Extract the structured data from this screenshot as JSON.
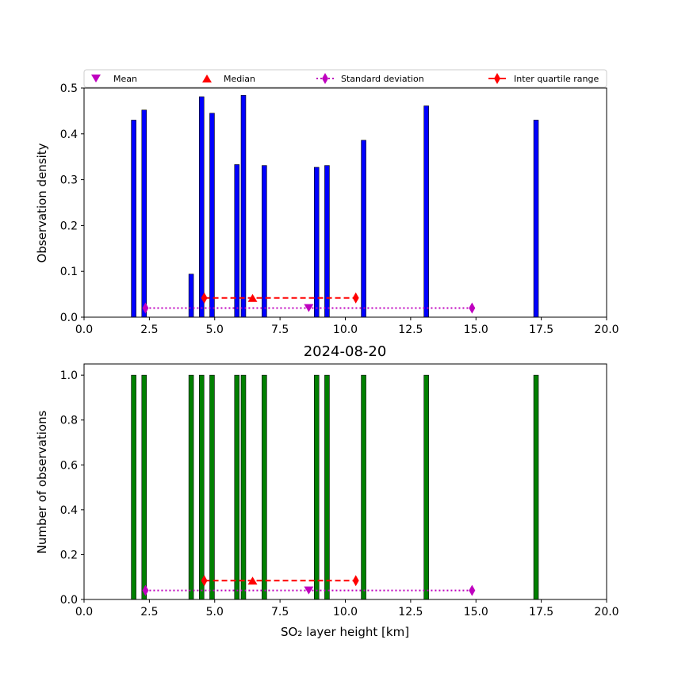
{
  "chart_data": [
    {
      "type": "bar",
      "ylabel": "Observation density",
      "xlabel": "",
      "title": "",
      "xlim": [
        0,
        20
      ],
      "ylim": [
        0,
        0.5
      ],
      "bar_width_km": 0.18,
      "bar_color": "#0000ff",
      "bars": [
        {
          "x": 1.9,
          "value": 0.43
        },
        {
          "x": 2.3,
          "value": 0.452
        },
        {
          "x": 4.1,
          "value": 0.094
        },
        {
          "x": 4.5,
          "value": 0.481
        },
        {
          "x": 4.9,
          "value": 0.445
        },
        {
          "x": 5.85,
          "value": 0.333
        },
        {
          "x": 6.1,
          "value": 0.484
        },
        {
          "x": 6.9,
          "value": 0.331
        },
        {
          "x": 8.9,
          "value": 0.327
        },
        {
          "x": 9.3,
          "value": 0.331
        },
        {
          "x": 10.7,
          "value": 0.386
        },
        {
          "x": 13.1,
          "value": 0.461
        },
        {
          "x": 17.3,
          "value": 0.43
        }
      ],
      "stats": {
        "std_line": {
          "x": [
            2.35,
            14.85
          ],
          "y": 0.02
        },
        "mean": {
          "x": 8.6,
          "y": 0.02
        },
        "iqr_line": {
          "x": [
            4.6,
            10.4
          ],
          "y": 0.042
        },
        "median": {
          "x": 6.45,
          "y": 0.042
        }
      },
      "xticks": [
        "0.0",
        "2.5",
        "5.0",
        "7.5",
        "10.0",
        "12.5",
        "15.0",
        "17.5",
        "20.0"
      ],
      "yticks": [
        "0.0",
        "0.1",
        "0.2",
        "0.3",
        "0.4",
        "0.5"
      ]
    },
    {
      "type": "bar",
      "title": "2024-08-20",
      "ylabel": "Number of observations",
      "xlabel": "SO₂ layer height [km]",
      "xlim": [
        0,
        20
      ],
      "ylim": [
        0,
        1.05
      ],
      "bar_width_km": 0.18,
      "bar_color": "#008000",
      "bars": [
        {
          "x": 1.9,
          "value": 1
        },
        {
          "x": 2.3,
          "value": 1
        },
        {
          "x": 4.1,
          "value": 1
        },
        {
          "x": 4.5,
          "value": 1
        },
        {
          "x": 4.9,
          "value": 1
        },
        {
          "x": 5.85,
          "value": 1
        },
        {
          "x": 6.1,
          "value": 1
        },
        {
          "x": 6.9,
          "value": 1
        },
        {
          "x": 8.9,
          "value": 1
        },
        {
          "x": 9.3,
          "value": 1
        },
        {
          "x": 10.7,
          "value": 1
        },
        {
          "x": 13.1,
          "value": 1
        },
        {
          "x": 17.3,
          "value": 1
        }
      ],
      "stats": {
        "std_line": {
          "x": [
            2.35,
            14.85
          ],
          "y": 0.04
        },
        "mean": {
          "x": 8.6,
          "y": 0.04
        },
        "iqr_line": {
          "x": [
            4.6,
            10.4
          ],
          "y": 0.084
        },
        "median": {
          "x": 6.45,
          "y": 0.084
        }
      },
      "xticks": [
        "0.0",
        "2.5",
        "5.0",
        "7.5",
        "10.0",
        "12.5",
        "15.0",
        "17.5",
        "20.0"
      ],
      "yticks": [
        "0.0",
        "0.2",
        "0.4",
        "0.6",
        "0.8",
        "1.0"
      ]
    }
  ],
  "legend": {
    "placement": "top",
    "items": [
      {
        "label": "Mean",
        "marker": "triangle-down",
        "color": "#bf00bf"
      },
      {
        "label": "Median",
        "marker": "triangle-up",
        "color": "#ff0000"
      },
      {
        "label": "Standard deviation",
        "marker": "diamond",
        "color": "#bf00bf",
        "line": "dotted"
      },
      {
        "label": "Inter quartile range",
        "marker": "diamond",
        "color": "#ff0000",
        "line": "dashed"
      }
    ]
  },
  "colors": {
    "mean": "#bf00bf",
    "median": "#ff0000",
    "std": "#bf00bf",
    "iqr": "#ff0000"
  }
}
